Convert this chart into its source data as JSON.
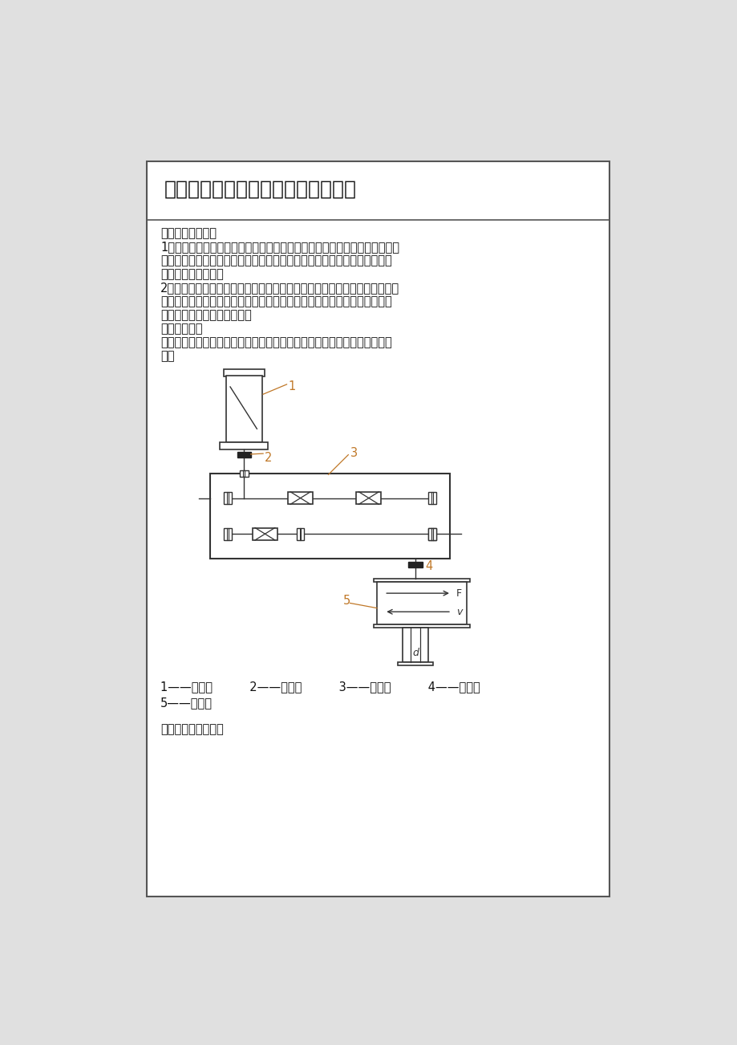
{
  "bg_color": "#e0e0e0",
  "content_bg": "#ffffff",
  "border_color": "#444444",
  "title": "一、设计任务书及其传动方案的拟定",
  "section1_header": "（一）课程目的：",
  "para1_line1": "1、通过机械设计课程设计，综合运用机械设计课程和其它有关选修课程的理",
  "para1_line2": "论和生产实际知识去分析和解决机械设计问题，并使所学知识得到进一步地",
  "para1_line3": "巩固、深化和发展。",
  "para2_line1": "2、学习机械设计的一般方法。通过设计培养正确的设计思想和分析问题、解",
  "para2_line2": "决问题的能力。进行机械设计基本技能的训练，如计算、绘图、查阅设计资",
  "para2_line3": "料和手册，熟悉标准和规范。",
  "section2_header": "（二）题目：",
  "para3_line1": "题目：设计带式运输机传动装置的二级展开式斜齿圆柱齿轮减速器，如图所",
  "para3_line2": "示：",
  "legend_line1": "1——电动机          2——联轴器          3——减速器          4——联轴器",
  "legend_line2": "5——输送带",
  "footer_text": "设计基础数据如下："
}
